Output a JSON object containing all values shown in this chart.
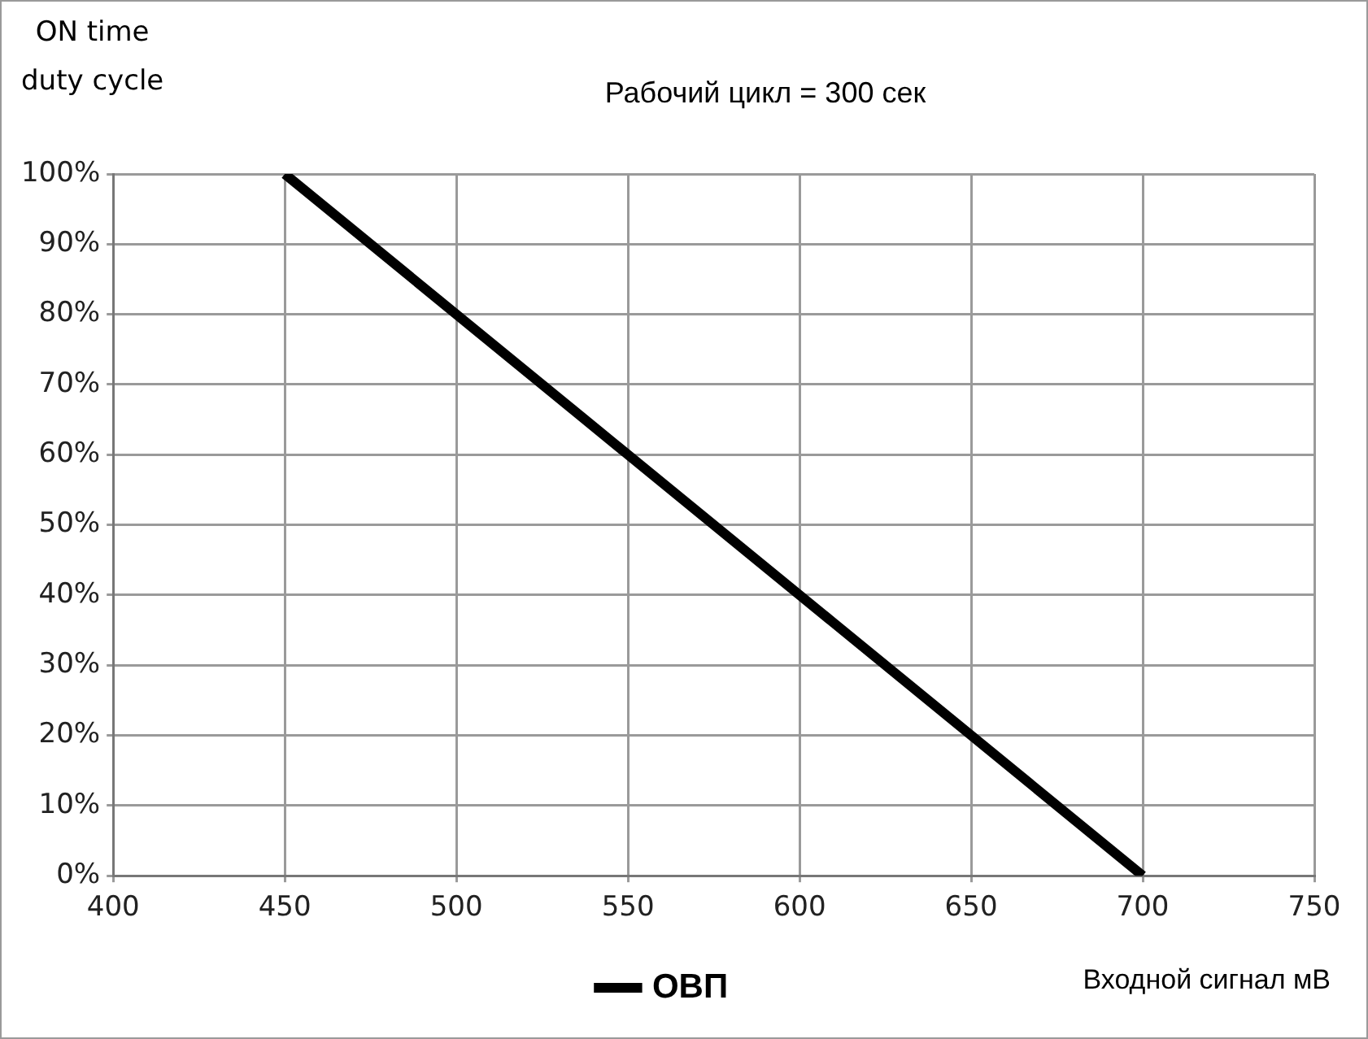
{
  "chart_data": {
    "type": "line",
    "title": "Рабочий цикл = 300 сек",
    "xlabel": "Входной сигнал мВ",
    "ylabel": "ON time\nduty cycle",
    "series": [
      {
        "name": "ОВП",
        "color": "#000000",
        "x": [
          450,
          700
        ],
        "values": [
          100,
          0
        ]
      }
    ],
    "xlim": [
      400,
      750
    ],
    "xticks": [
      400,
      450,
      500,
      550,
      600,
      650,
      700,
      750
    ],
    "ylim": [
      0,
      100
    ],
    "yticks": [
      {
        "value": 0,
        "label": "0%"
      },
      {
        "value": 10,
        "label": "10%"
      },
      {
        "value": 20,
        "label": "20%"
      },
      {
        "value": 30,
        "label": "30%"
      },
      {
        "value": 40,
        "label": "40%"
      },
      {
        "value": 50,
        "label": "50%"
      },
      {
        "value": 60,
        "label": "60%"
      },
      {
        "value": 70,
        "label": "70%"
      },
      {
        "value": 80,
        "label": "80%"
      },
      {
        "value": 90,
        "label": "90%"
      },
      {
        "value": 100,
        "label": "100%"
      }
    ],
    "grid": true,
    "legend": "bottom",
    "marker": "none",
    "line_style": "solid"
  }
}
